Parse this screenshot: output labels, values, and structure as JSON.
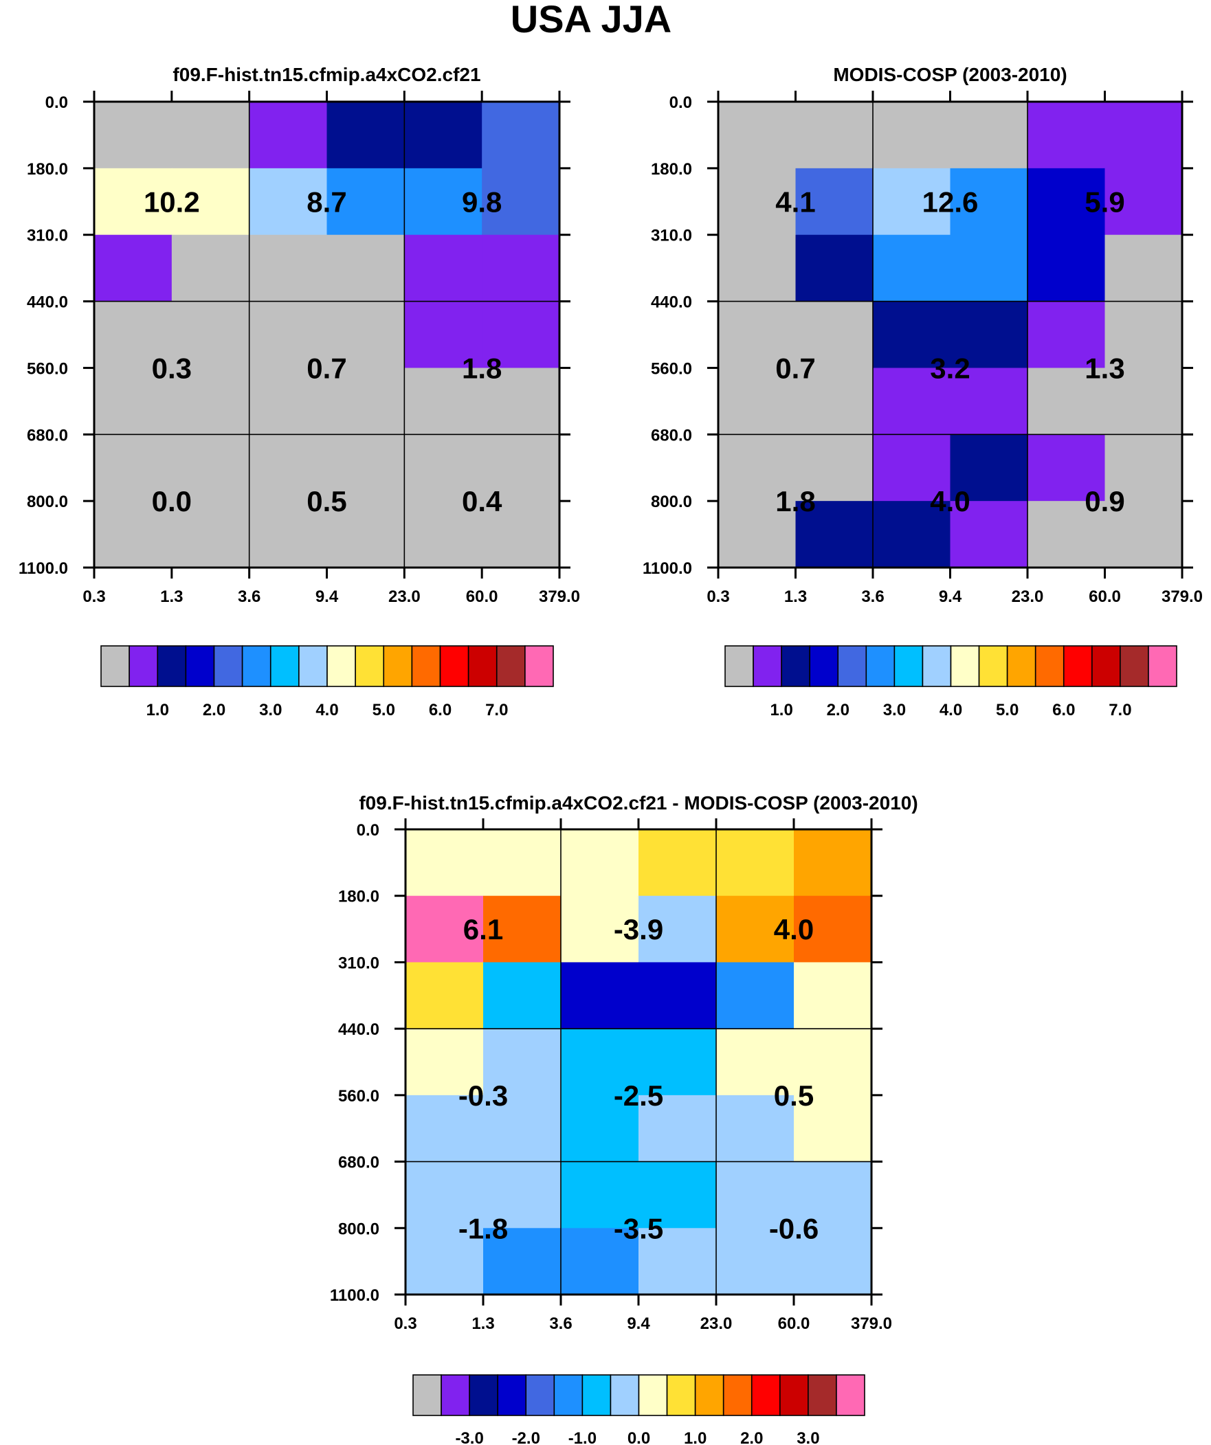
{
  "figure": {
    "title": "USA JJA"
  },
  "colors": {
    "bins": [
      "#c0c0c0",
      "#8122ef",
      "#000f8f",
      "#0000cc",
      "#4168e1",
      "#1e90ff",
      "#00bfff",
      "#a0d0ff",
      "#ffffc8",
      "#ffe135",
      "#ffa500",
      "#ff6a00",
      "#ff0000",
      "#cc0000",
      "#a52a2a",
      "#ff69b4"
    ]
  },
  "chart_data": [
    {
      "type": "heatmap",
      "title": "f09.F-hist.tn15.cfmip.a4xCO2.cf21",
      "x_tick_labels": [
        "0.3",
        "1.3",
        "3.6",
        "9.4",
        "23.0",
        "60.0",
        "379.0"
      ],
      "y_tick_labels": [
        "0.0",
        "180.0",
        "310.0",
        "440.0",
        "560.0",
        "680.0",
        "800.0",
        "1100.0"
      ],
      "xlabel": "",
      "ylabel": "",
      "cell_bins": [
        [
          0,
          0,
          1,
          2,
          2,
          4
        ],
        [
          8,
          8,
          7,
          5,
          5,
          4
        ],
        [
          1,
          0,
          0,
          0,
          1,
          1
        ],
        [
          0,
          0,
          0,
          0,
          1,
          1
        ],
        [
          0,
          0,
          0,
          0,
          0,
          0
        ],
        [
          0,
          0,
          0,
          0,
          0,
          0
        ],
        [
          0,
          0,
          0,
          0,
          0,
          0
        ]
      ],
      "group_values": [
        [
          "10.2",
          "8.7",
          "9.8"
        ],
        [
          "0.3",
          "0.7",
          "1.8"
        ],
        [
          "0.0",
          "0.5",
          "0.4"
        ]
      ],
      "colorbar": {
        "tick_labels": [
          "1.0",
          "2.0",
          "3.0",
          "4.0",
          "5.0",
          "6.0",
          "7.0"
        ],
        "tick_after_box": [
          2,
          4,
          6,
          8,
          10,
          12,
          14
        ]
      }
    },
    {
      "type": "heatmap",
      "title": "MODIS-COSP (2003-2010)",
      "x_tick_labels": [
        "0.3",
        "1.3",
        "3.6",
        "9.4",
        "23.0",
        "60.0",
        "379.0"
      ],
      "y_tick_labels": [
        "0.0",
        "180.0",
        "310.0",
        "440.0",
        "560.0",
        "680.0",
        "800.0",
        "1100.0"
      ],
      "xlabel": "",
      "ylabel": "",
      "cell_bins": [
        [
          0,
          0,
          0,
          0,
          1,
          1
        ],
        [
          0,
          4,
          7,
          5,
          3,
          1
        ],
        [
          0,
          2,
          5,
          5,
          3,
          0
        ],
        [
          0,
          0,
          2,
          2,
          1,
          0
        ],
        [
          0,
          0,
          1,
          1,
          0,
          0
        ],
        [
          0,
          0,
          1,
          2,
          1,
          0
        ],
        [
          0,
          2,
          2,
          1,
          0,
          0
        ]
      ],
      "group_values": [
        [
          "4.1",
          "12.6",
          "5.9"
        ],
        [
          "0.7",
          "3.2",
          "1.3"
        ],
        [
          "1.8",
          "4.0",
          "0.9"
        ]
      ],
      "colorbar": {
        "tick_labels": [
          "1.0",
          "2.0",
          "3.0",
          "4.0",
          "5.0",
          "6.0",
          "7.0"
        ],
        "tick_after_box": [
          2,
          4,
          6,
          8,
          10,
          12,
          14
        ]
      }
    },
    {
      "type": "heatmap",
      "title": "f09.F-hist.tn15.cfmip.a4xCO2.cf21 - MODIS-COSP (2003-2010)",
      "x_tick_labels": [
        "0.3",
        "1.3",
        "3.6",
        "9.4",
        "23.0",
        "60.0",
        "379.0"
      ],
      "y_tick_labels": [
        "0.0",
        "180.0",
        "310.0",
        "440.0",
        "560.0",
        "680.0",
        "800.0",
        "1100.0"
      ],
      "xlabel": "",
      "ylabel": "",
      "cell_bins": [
        [
          8,
          8,
          8,
          9,
          9,
          10
        ],
        [
          15,
          11,
          8,
          7,
          10,
          11
        ],
        [
          9,
          6,
          3,
          3,
          5,
          8
        ],
        [
          8,
          7,
          6,
          6,
          8,
          8
        ],
        [
          7,
          7,
          6,
          7,
          7,
          8
        ],
        [
          7,
          7,
          6,
          6,
          7,
          7
        ],
        [
          7,
          5,
          5,
          7,
          7,
          7
        ]
      ],
      "group_values": [
        [
          "6.1",
          "-3.9",
          "4.0"
        ],
        [
          "-0.3",
          "-2.5",
          "0.5"
        ],
        [
          "-1.8",
          "-3.5",
          "-0.6"
        ]
      ],
      "colorbar": {
        "tick_labels": [
          "-3.0",
          "-2.0",
          "-1.0",
          "0.0",
          "1.0",
          "2.0",
          "3.0"
        ],
        "tick_after_box": [
          2,
          4,
          6,
          8,
          10,
          12,
          14
        ]
      }
    }
  ]
}
